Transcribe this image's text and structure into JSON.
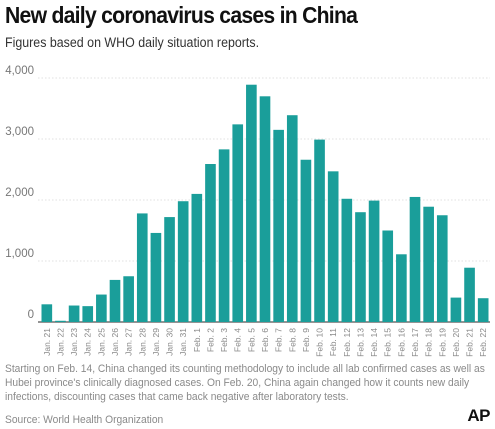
{
  "header": {
    "title": "New daily coronavirus cases in China",
    "subtitle": "Figures based on WHO daily situation reports."
  },
  "footer": {
    "note": "Starting on Feb. 14, China changed its counting methodology to include all lab confirmed cases as well as Hubei province's clinically diagnosed cases. On Feb. 20, China again changed how it counts new daily infections, discounting cases that came back negative after laboratory tests.",
    "source": "Source: World Health Organization",
    "logo": "AP"
  },
  "colors": {
    "bar": "#1a9e9a",
    "grid": "#d6d6d6",
    "axis": "#555555"
  },
  "chart_data": {
    "type": "bar",
    "title": "New daily coronavirus cases in China",
    "subtitle": "Figures based on WHO daily situation reports.",
    "xlabel": "",
    "ylabel": "",
    "ylim": [
      0,
      4000
    ],
    "yticks": [
      0,
      1000,
      2000,
      3000,
      4000
    ],
    "ytick_labels": [
      "0",
      "1,000",
      "2,000",
      "3,000",
      "4,000"
    ],
    "grid": true,
    "categories": [
      "Jan. 21",
      "Jan. 22",
      "Jan. 23",
      "Jan. 24",
      "Jan. 25",
      "Jan. 26",
      "Jan. 27",
      "Jan. 28",
      "Jan. 29",
      "Jan. 30",
      "Jan. 31",
      "Feb. 1",
      "Feb. 2",
      "Feb. 3",
      "Feb. 4",
      "Feb. 5",
      "Feb. 6",
      "Feb. 7",
      "Feb. 8",
      "Feb. 9",
      "Feb. 10",
      "Feb. 11",
      "Feb. 12",
      "Feb. 13",
      "Feb. 14",
      "Feb. 15",
      "Feb. 16",
      "Feb. 17",
      "Feb. 18",
      "Feb. 19",
      "Feb. 20",
      "Feb. 21",
      "Feb. 22"
    ],
    "values": [
      290,
      20,
      270,
      260,
      450,
      690,
      750,
      1780,
      1460,
      1720,
      1980,
      2100,
      2590,
      2830,
      3240,
      3890,
      3700,
      3150,
      3390,
      2660,
      2990,
      2470,
      2020,
      1800,
      1990,
      1500,
      1110,
      2050,
      1890,
      1750,
      400,
      890,
      390
    ]
  }
}
